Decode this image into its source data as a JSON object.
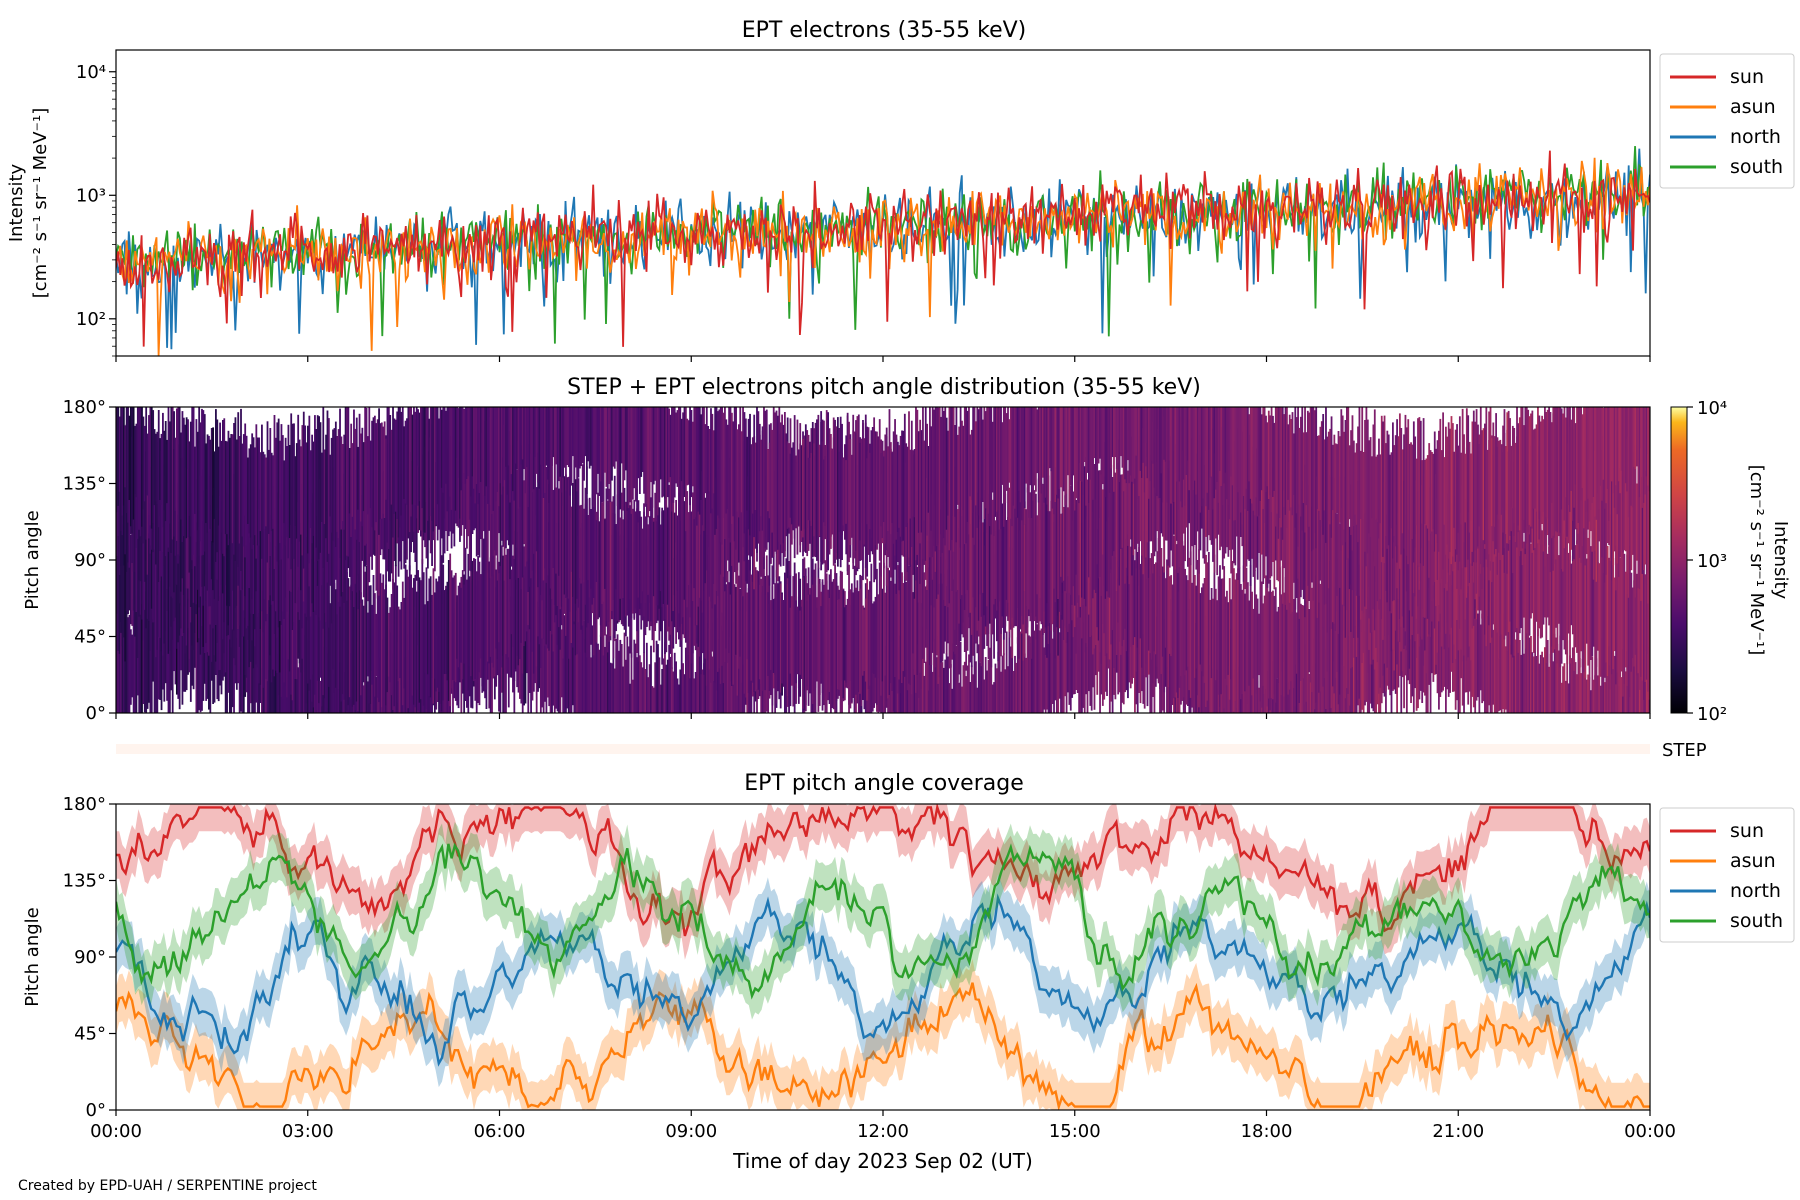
{
  "figure": {
    "credit": "Created by EPD-UAH / SERPENTINE project",
    "xlabel": "Time of day 2023 Sep 02 (UT)",
    "time_ticks": [
      "00:00",
      "03:00",
      "06:00",
      "09:00",
      "12:00",
      "15:00",
      "18:00",
      "21:00",
      "00:00"
    ]
  },
  "colors": {
    "sun": "#d62728",
    "asun": "#ff7f0e",
    "north": "#1f77b4",
    "south": "#2ca02c"
  },
  "chart_data": [
    {
      "id": "intensity",
      "type": "line",
      "title": "EPT electrons (35-55 keV)",
      "ylabel_lines": [
        "Intensity",
        "[cm⁻² s⁻¹ sr⁻¹ MeV⁻¹]"
      ],
      "yscale": "log",
      "ylim": [
        50,
        15000
      ],
      "yticks": [
        {
          "value": 100,
          "label": "10²"
        },
        {
          "value": 1000,
          "label": "10³"
        },
        {
          "value": 10000,
          "label": "10⁴"
        }
      ],
      "x_unit": "hours since 2023-09-02 00:00 UT",
      "xlim": [
        0,
        24
      ],
      "legend_position": "outside-top-right",
      "series": [
        {
          "name": "sun",
          "color_key": "sun",
          "trend": [
            {
              "x": 0,
              "y": 300
            },
            {
              "x": 6,
              "y": 430
            },
            {
              "x": 12,
              "y": 580
            },
            {
              "x": 18,
              "y": 780
            },
            {
              "x": 24,
              "y": 1100
            }
          ]
        },
        {
          "name": "asun",
          "color_key": "asun",
          "trend": [
            {
              "x": 0,
              "y": 280
            },
            {
              "x": 6,
              "y": 400
            },
            {
              "x": 12,
              "y": 560
            },
            {
              "x": 18,
              "y": 720
            },
            {
              "x": 24,
              "y": 1000
            }
          ]
        },
        {
          "name": "north",
          "color_key": "north",
          "trend": [
            {
              "x": 0,
              "y": 270
            },
            {
              "x": 6,
              "y": 410
            },
            {
              "x": 12,
              "y": 560
            },
            {
              "x": 18,
              "y": 740
            },
            {
              "x": 24,
              "y": 1000
            }
          ]
        },
        {
          "name": "south",
          "color_key": "south",
          "trend": [
            {
              "x": 0,
              "y": 290
            },
            {
              "x": 6,
              "y": 420
            },
            {
              "x": 12,
              "y": 570
            },
            {
              "x": 18,
              "y": 760
            },
            {
              "x": 24,
              "y": 1050
            }
          ]
        }
      ]
    },
    {
      "id": "pad",
      "type": "heatmap",
      "title": "STEP + EPT electrons pitch angle distribution (35-55 keV)",
      "ylabel": "Pitch angle",
      "ylim": [
        0,
        180
      ],
      "yticks": [
        "0°",
        "45°",
        "90°",
        "135°",
        "180°"
      ],
      "xlim": [
        0,
        24
      ],
      "colorbar": {
        "label_lines": [
          "Intensity",
          "[cm⁻² s⁻¹ sr⁻¹ MeV⁻¹]"
        ],
        "scale": "log",
        "range": [
          100,
          10000
        ],
        "ticks": [
          "10²",
          "10³",
          "10⁴"
        ],
        "colormap": "inferno"
      },
      "intensity_trend": [
        {
          "x": 0,
          "y": 280
        },
        {
          "x": 6,
          "y": 420
        },
        {
          "x": 12,
          "y": 560
        },
        {
          "x": 18,
          "y": 760
        },
        {
          "x": 24,
          "y": 1050
        }
      ]
    },
    {
      "id": "step_strip",
      "type": "heatmap",
      "label": "STEP"
    },
    {
      "id": "coverage",
      "type": "line",
      "title": "EPT pitch angle coverage",
      "ylabel": "Pitch angle",
      "ylim": [
        0,
        180
      ],
      "yticks": [
        "0°",
        "45°",
        "90°",
        "135°",
        "180°"
      ],
      "xlim": [
        0,
        24
      ],
      "legend_position": "outside-top-right",
      "series": [
        {
          "name": "sun",
          "color_key": "sun",
          "mean": 150
        },
        {
          "name": "asun",
          "color_key": "asun",
          "mean": 30
        },
        {
          "name": "north",
          "color_key": "north",
          "mean": 70
        },
        {
          "name": "south",
          "color_key": "south",
          "mean": 110
        }
      ]
    }
  ]
}
